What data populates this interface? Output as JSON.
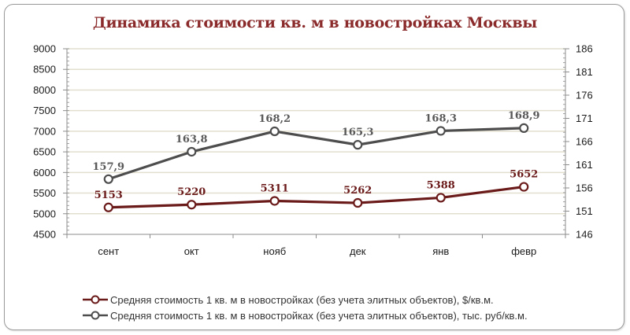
{
  "chart_data": {
    "type": "line",
    "title": "Динамика стоимости кв. м в новостройках Москвы",
    "categories": [
      "сент",
      "окт",
      "нояб",
      "дек",
      "янв",
      "февр"
    ],
    "series": [
      {
        "name": "Средняя стоимость 1 кв. м в новостройках (без учета элитных объектов), $/кв.м.",
        "axis": "left",
        "color": "#6b1a1a",
        "values": [
          5153,
          5220,
          5311,
          5262,
          5388,
          5652
        ],
        "labels": [
          "5153",
          "5220",
          "5311",
          "5262",
          "5388",
          "5652"
        ]
      },
      {
        "name": "Средняя стоимость 1 кв. м в новостройках (без учета элитных объектов), тыс. руб/кв.м.",
        "axis": "right",
        "color": "#4d4d4d",
        "values": [
          157.9,
          163.8,
          168.2,
          165.3,
          168.3,
          168.9
        ],
        "labels": [
          "157,9",
          "163,8",
          "168,2",
          "165,3",
          "168,3",
          "168,9"
        ]
      }
    ],
    "y_left": {
      "min": 4500,
      "max": 9000,
      "step": 500,
      "ticks": [
        "9000",
        "8500",
        "8000",
        "7500",
        "7000",
        "6500",
        "6000",
        "5500",
        "5000",
        "4500"
      ]
    },
    "y_right": {
      "min": 146,
      "max": 186,
      "step": 5,
      "ticks": [
        "186",
        "181",
        "176",
        "171",
        "166",
        "161",
        "156",
        "151",
        "146"
      ]
    },
    "xlabel": "",
    "ylabel": "",
    "grid": true,
    "legend_position": "bottom",
    "colors": {
      "title": "#8b2a2a",
      "grid": "#e2dfcf",
      "axis": "#8c8c8c"
    }
  }
}
